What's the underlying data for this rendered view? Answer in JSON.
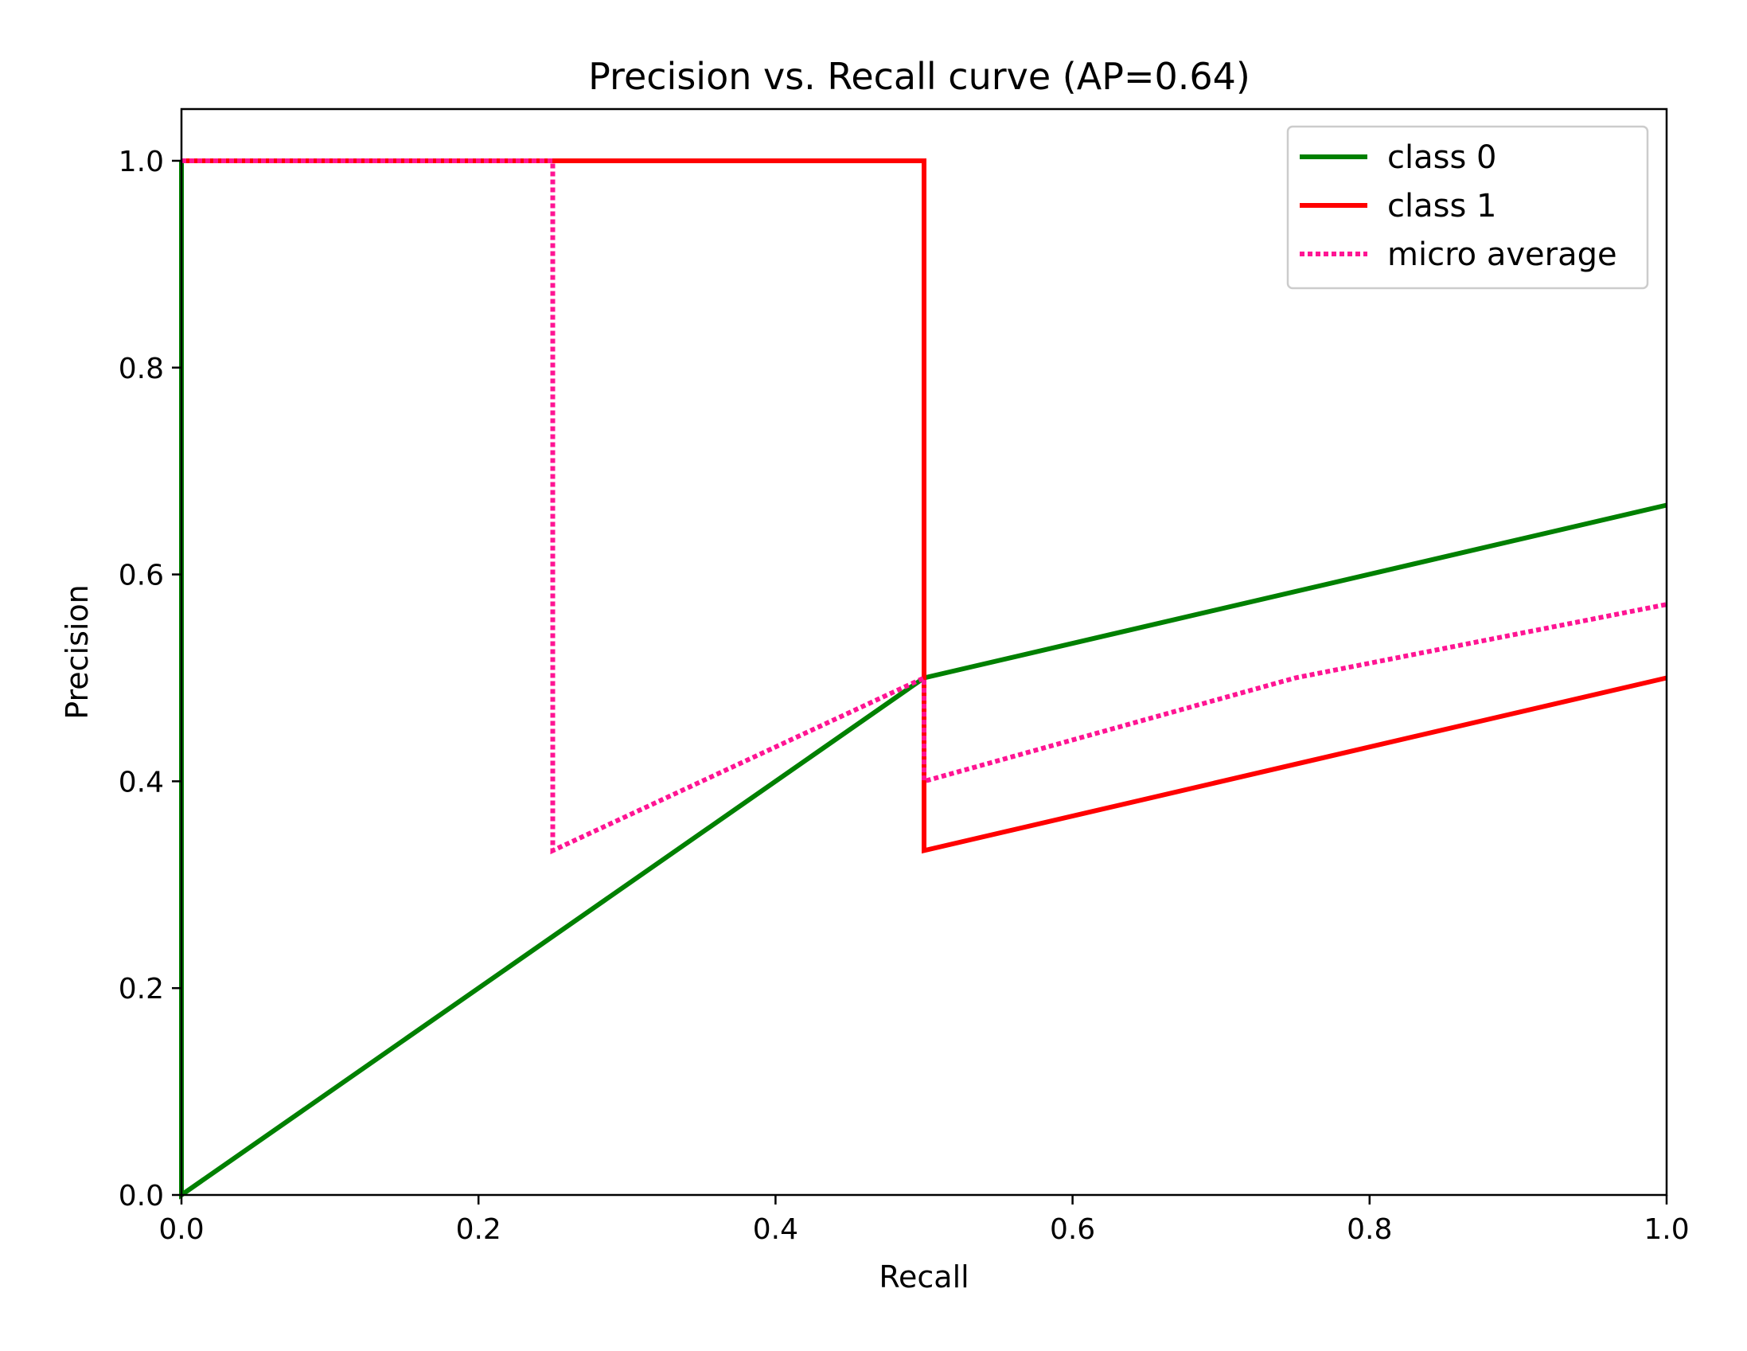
{
  "chart_data": {
    "type": "line",
    "title": "Precision vs. Recall curve (AP=0.64)",
    "xlabel": "Recall",
    "ylabel": "Precision",
    "xlim": [
      0.0,
      1.0
    ],
    "ylim": [
      0.0,
      1.05
    ],
    "x_ticks": [
      "0.0",
      "0.2",
      "0.4",
      "0.6",
      "0.8",
      "1.0"
    ],
    "y_ticks": [
      "0.0",
      "0.2",
      "0.4",
      "0.6",
      "0.8",
      "1.0"
    ],
    "grid": false,
    "legend_position": "top-right",
    "series": [
      {
        "name": "class 0",
        "color": "#008000",
        "style": "solid",
        "points": [
          [
            0.0,
            1.0
          ],
          [
            0.0,
            0.0
          ],
          [
            0.5,
            0.5
          ],
          [
            1.0,
            0.667
          ]
        ]
      },
      {
        "name": "class 1",
        "color": "#ff0000",
        "style": "solid",
        "points": [
          [
            0.0,
            1.0
          ],
          [
            0.5,
            1.0
          ],
          [
            0.5,
            0.333
          ],
          [
            1.0,
            0.5
          ]
        ]
      },
      {
        "name": "micro average",
        "color": "#ff1493",
        "style": "dotted",
        "points": [
          [
            0.0,
            1.0
          ],
          [
            0.25,
            1.0
          ],
          [
            0.25,
            0.333
          ],
          [
            0.5,
            0.5
          ],
          [
            0.5,
            0.4
          ],
          [
            0.75,
            0.5
          ],
          [
            1.0,
            0.571
          ]
        ]
      }
    ]
  }
}
